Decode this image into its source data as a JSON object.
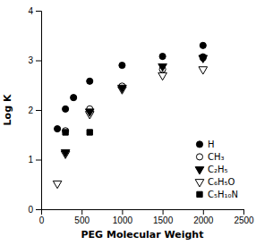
{
  "chart_data": {
    "type": "scatter",
    "xlabel": "PEG Molecular Weight",
    "ylabel": "Log K",
    "xlim": [
      0,
      2500
    ],
    "ylim": [
      0,
      4
    ],
    "xticks": [
      0,
      500,
      1000,
      1500,
      2000,
      2500
    ],
    "yticks": [
      0,
      1,
      2,
      3,
      4
    ],
    "legend": "lower right",
    "series": [
      {
        "name": "H",
        "marker": "circle",
        "color": "black",
        "x": [
          200,
          300,
          400,
          600,
          1000,
          1500,
          2000,
          2000
        ],
        "values": [
          1.62,
          2.02,
          2.25,
          2.58,
          2.9,
          3.08,
          3.3,
          3.07
        ]
      },
      {
        "name": "CH₃",
        "marker": "circle-open",
        "color": "black",
        "x": [
          300,
          600,
          1000,
          1500,
          2000
        ],
        "values": [
          1.58,
          2.02,
          2.48,
          2.82,
          3.05
        ]
      },
      {
        "name": "C₂H₅",
        "marker": "triangle-down",
        "color": "black",
        "x": [
          300,
          600,
          1000,
          1500,
          2000
        ],
        "values": [
          1.15,
          1.97,
          2.45,
          2.88,
          3.05
        ]
      },
      {
        "name": "C₆H₅O",
        "marker": "triangle-down-open",
        "color": "black",
        "x": [
          200,
          300,
          600,
          1000,
          1500,
          2000
        ],
        "values": [
          0.52,
          1.12,
          1.92,
          2.42,
          2.7,
          2.82
        ]
      },
      {
        "name": "C₅H₁₀N",
        "marker": "square",
        "color": "black",
        "x": [
          300,
          600
        ],
        "values": [
          1.55,
          1.55
        ]
      }
    ]
  }
}
